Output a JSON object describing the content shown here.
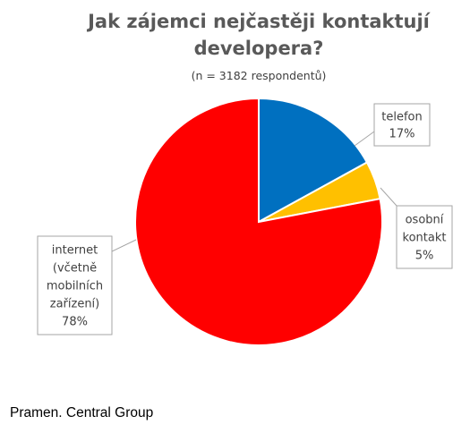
{
  "chart_data": {
    "type": "pie",
    "title_lines": [
      "Jak zájemci nejčastěji kontaktují",
      "developera?"
    ],
    "subtitle": "(n = 3182 respondentů)",
    "start_angle_deg": 0,
    "direction": "clockwise",
    "slices": [
      {
        "key": "telefon",
        "value": 17,
        "color": "#0070c0",
        "label_lines": [
          "telefon",
          "17%"
        ]
      },
      {
        "key": "osobni-kontakt",
        "value": 5,
        "color": "#ffc000",
        "label_lines": [
          "osobní",
          "kontakt",
          "5%"
        ]
      },
      {
        "key": "internet",
        "value": 78,
        "color": "#ff0000",
        "label_lines": [
          "internet",
          "(včetně",
          "mobilních",
          "zařízení)",
          "78%"
        ]
      }
    ]
  },
  "source_note": "Pramen. Central Group"
}
